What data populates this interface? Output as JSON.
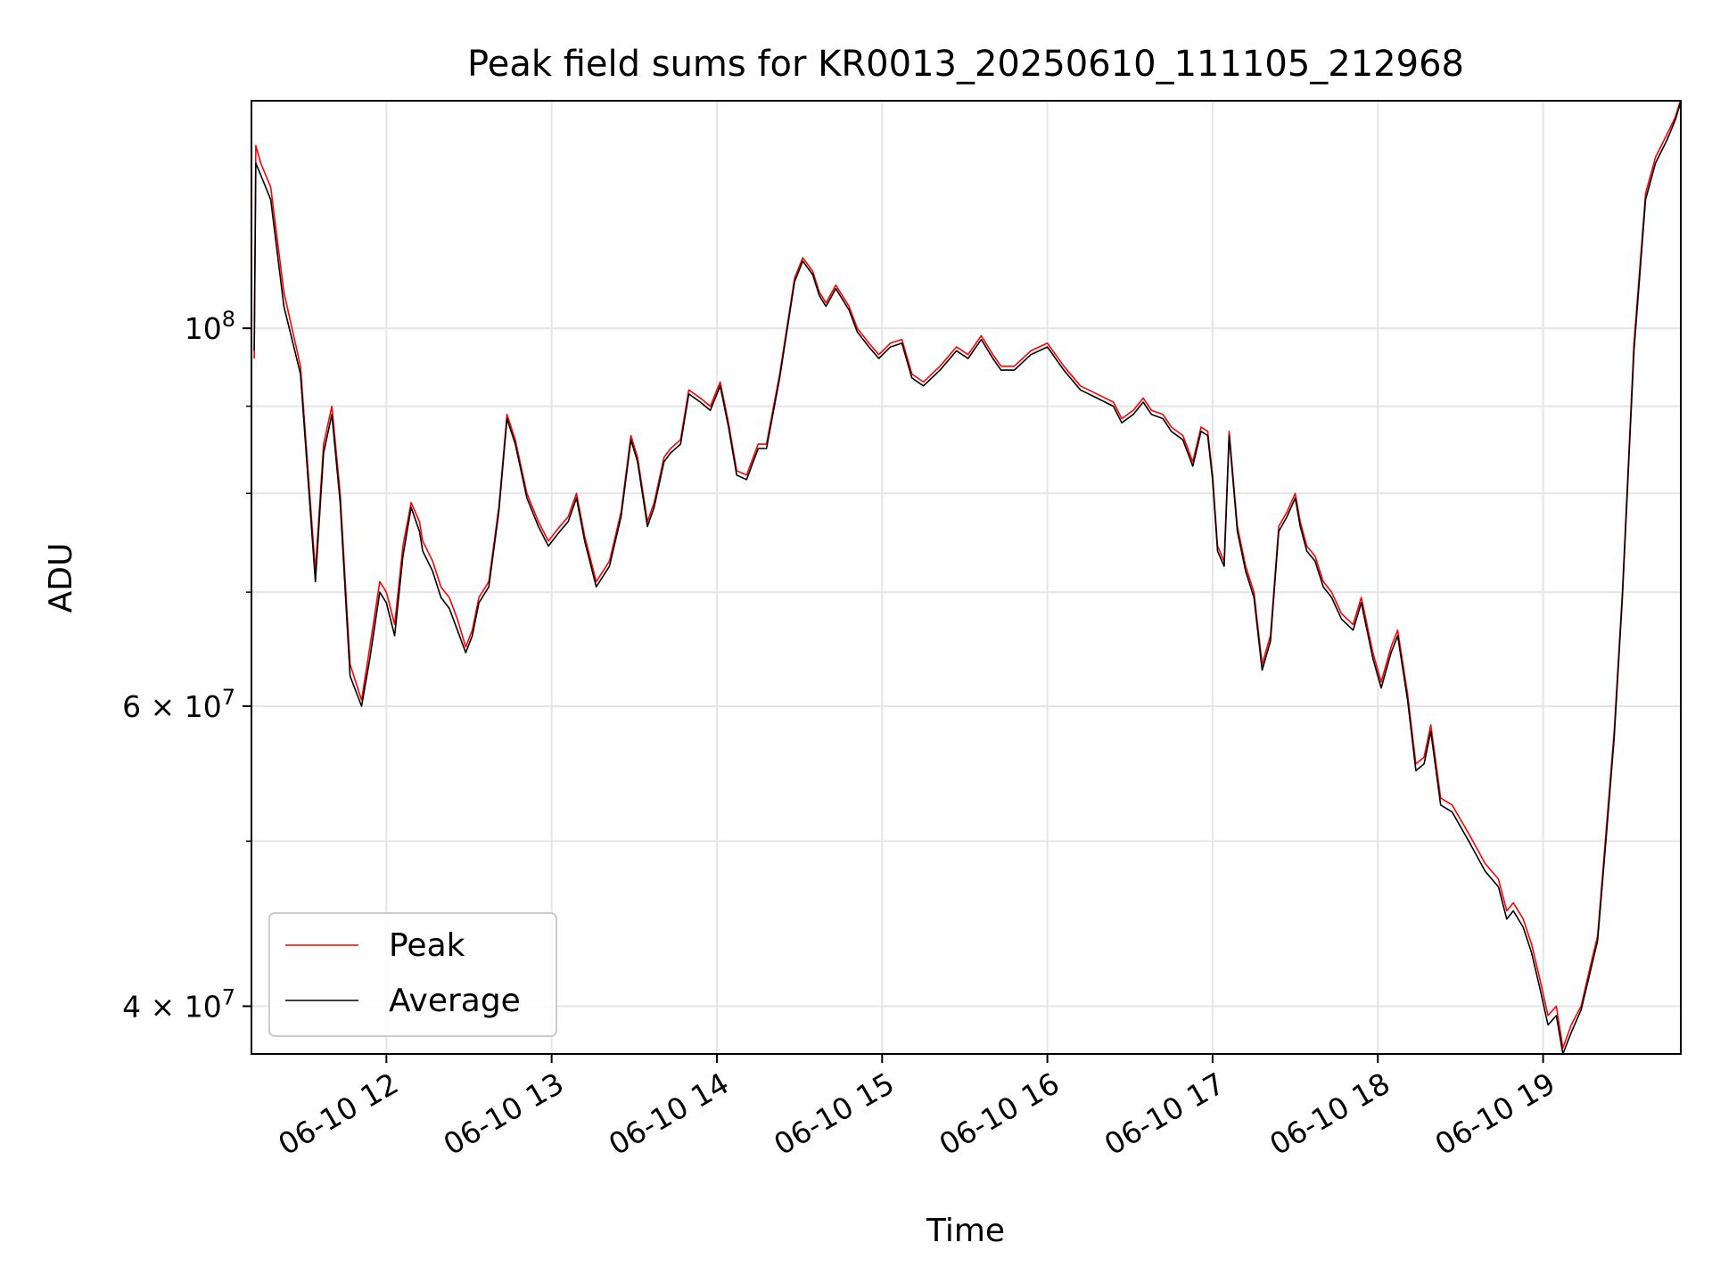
{
  "chart_data": {
    "type": "line",
    "title": "Peak field sums for KR0013_20250610_111105_212968",
    "xlabel": "Time",
    "ylabel": "ADU",
    "y_scale": "log",
    "xlim": [
      "2025-06-10 11:11",
      "2025-06-10 19:50"
    ],
    "ylim": [
      37500000,
      136000000
    ],
    "grid": true,
    "legend_position": "lower-left",
    "x_ticks": [
      "06-10 12",
      "06-10 13",
      "06-10 14",
      "06-10 15",
      "06-10 16",
      "06-10 17",
      "06-10 18",
      "06-10 19"
    ],
    "x_tick_hours": [
      12,
      13,
      14,
      15,
      16,
      17,
      18,
      19
    ],
    "y_major_ticks": [
      {
        "value": 40000000,
        "mantissa": "4 × 10",
        "exp": "7"
      },
      {
        "value": 60000000,
        "mantissa": "6 × 10",
        "exp": "7"
      },
      {
        "value": 100000000,
        "mantissa": "10",
        "exp": "8"
      }
    ],
    "y_minor_ticks": [
      50000000,
      70000000,
      80000000,
      90000000
    ],
    "series": [
      {
        "name": "Peak",
        "color": "#ff0000"
      },
      {
        "name": "Average",
        "color": "#000000"
      }
    ],
    "x_hours": [
      11.2,
      11.21,
      11.24,
      11.3,
      11.38,
      11.48,
      11.57,
      11.62,
      11.67,
      11.72,
      11.78,
      11.85,
      11.9,
      11.96,
      12.0,
      12.05,
      12.1,
      12.15,
      12.2,
      12.22,
      12.28,
      12.33,
      12.38,
      12.43,
      12.48,
      12.52,
      12.56,
      12.62,
      12.68,
      12.73,
      12.78,
      12.85,
      12.92,
      12.98,
      13.05,
      13.1,
      13.15,
      13.2,
      13.27,
      13.35,
      13.42,
      13.48,
      13.52,
      13.58,
      13.62,
      13.68,
      13.72,
      13.78,
      13.83,
      13.9,
      13.96,
      14.02,
      14.07,
      14.12,
      14.18,
      14.25,
      14.3,
      14.38,
      14.47,
      14.52,
      14.58,
      14.62,
      14.66,
      14.72,
      14.8,
      14.85,
      14.92,
      14.98,
      15.05,
      15.12,
      15.18,
      15.25,
      15.35,
      15.45,
      15.52,
      15.6,
      15.67,
      15.72,
      15.8,
      15.9,
      16.0,
      16.1,
      16.2,
      16.3,
      16.4,
      16.45,
      16.52,
      16.58,
      16.63,
      16.7,
      16.75,
      16.82,
      16.88,
      16.93,
      16.97,
      17.0,
      17.03,
      17.07,
      17.1,
      17.15,
      17.2,
      17.25,
      17.3,
      17.35,
      17.4,
      17.45,
      17.5,
      17.53,
      17.57,
      17.62,
      17.67,
      17.72,
      17.78,
      17.85,
      17.9,
      17.97,
      18.02,
      18.08,
      18.12,
      18.18,
      18.23,
      18.28,
      18.32,
      18.38,
      18.45,
      18.55,
      18.65,
      18.73,
      18.78,
      18.82,
      18.88,
      18.93,
      18.98,
      19.03,
      19.08,
      19.12,
      19.17,
      19.23,
      19.28,
      19.33,
      19.38,
      19.43,
      19.48,
      19.55,
      19.62,
      19.68,
      19.75,
      19.8,
      19.83
    ],
    "peak_values": [
      96000000,
      128000000,
      125000000,
      121000000,
      105000000,
      95000000,
      72000000,
      85500000,
      90000000,
      80000000,
      63500000,
      60500000,
      65000000,
      71000000,
      70000000,
      67000000,
      74500000,
      79000000,
      77000000,
      75000000,
      73000000,
      70500000,
      69500000,
      67500000,
      65000000,
      66500000,
      69500000,
      71000000,
      78500000,
      89000000,
      86000000,
      80000000,
      77000000,
      75000000,
      76500000,
      77500000,
      80000000,
      75500000,
      71000000,
      73000000,
      78000000,
      86500000,
      84000000,
      77000000,
      79000000,
      84000000,
      85000000,
      86000000,
      92000000,
      91000000,
      90000000,
      93000000,
      88000000,
      82500000,
      82000000,
      85500000,
      85500000,
      94000000,
      107000000,
      110000000,
      108000000,
      105000000,
      103500000,
      106000000,
      103000000,
      100000000,
      98000000,
      96500000,
      98000000,
      98500000,
      94000000,
      93000000,
      95000000,
      97500000,
      96500000,
      99000000,
      96500000,
      95000000,
      95000000,
      97000000,
      98000000,
      95000000,
      92500000,
      91500000,
      90500000,
      88500000,
      89500000,
      91000000,
      89500000,
      89000000,
      87500000,
      86500000,
      83500000,
      87500000,
      87000000,
      82000000,
      74500000,
      73000000,
      87000000,
      76500000,
      72500000,
      70000000,
      63500000,
      66000000,
      76500000,
      78000000,
      80000000,
      77000000,
      74500000,
      73500000,
      71000000,
      70000000,
      68000000,
      67000000,
      69500000,
      64500000,
      62000000,
      65000000,
      66500000,
      61000000,
      55500000,
      56000000,
      58500000,
      53000000,
      52500000,
      50500000,
      48500000,
      47500000,
      45500000,
      46000000,
      45000000,
      43500000,
      41500000,
      39500000,
      40000000,
      37800000,
      39000000,
      40000000,
      42000000,
      44000000,
      50500000,
      58000000,
      70000000,
      98000000,
      120000000,
      126000000,
      130000000,
      133000000,
      136000000
    ],
    "average_values": [
      97000000,
      125000000,
      123000000,
      119000000,
      103000000,
      94000000,
      71000000,
      84500000,
      89000000,
      79000000,
      62500000,
      60000000,
      64000000,
      70000000,
      69000000,
      66000000,
      73500000,
      78500000,
      76000000,
      74000000,
      72000000,
      69500000,
      68500000,
      66500000,
      64500000,
      66000000,
      69000000,
      70500000,
      78000000,
      88500000,
      85500000,
      79500000,
      76500000,
      74500000,
      76000000,
      77000000,
      79500000,
      75000000,
      70500000,
      72500000,
      77500000,
      86000000,
      83500000,
      76500000,
      78500000,
      83500000,
      84500000,
      85500000,
      91500000,
      90500000,
      89500000,
      92500000,
      87500000,
      82000000,
      81500000,
      85000000,
      85000000,
      93500000,
      106500000,
      109500000,
      107500000,
      104500000,
      103000000,
      105500000,
      102500000,
      99500000,
      97500000,
      96000000,
      97500000,
      98000000,
      93500000,
      92500000,
      94500000,
      97000000,
      96000000,
      98500000,
      96000000,
      94500000,
      94500000,
      96500000,
      97500000,
      94500000,
      92000000,
      91000000,
      90000000,
      88000000,
      89000000,
      90500000,
      89000000,
      88500000,
      87000000,
      86000000,
      83000000,
      87000000,
      86500000,
      81500000,
      74000000,
      72500000,
      86500000,
      76000000,
      72000000,
      69500000,
      63000000,
      65500000,
      76000000,
      77500000,
      79500000,
      76500000,
      74000000,
      73000000,
      70500000,
      69500000,
      67500000,
      66500000,
      69000000,
      64000000,
      61500000,
      64500000,
      66000000,
      60500000,
      55000000,
      55500000,
      58000000,
      52500000,
      52000000,
      50000000,
      48000000,
      47000000,
      45000000,
      45500000,
      44500000,
      43000000,
      41000000,
      39000000,
      39500000,
      37500000,
      38600000,
      39800000,
      41700000,
      43700000,
      50000000,
      57500000,
      69500000,
      97000000,
      119000000,
      125000000,
      129000000,
      132500000,
      135500000
    ]
  }
}
